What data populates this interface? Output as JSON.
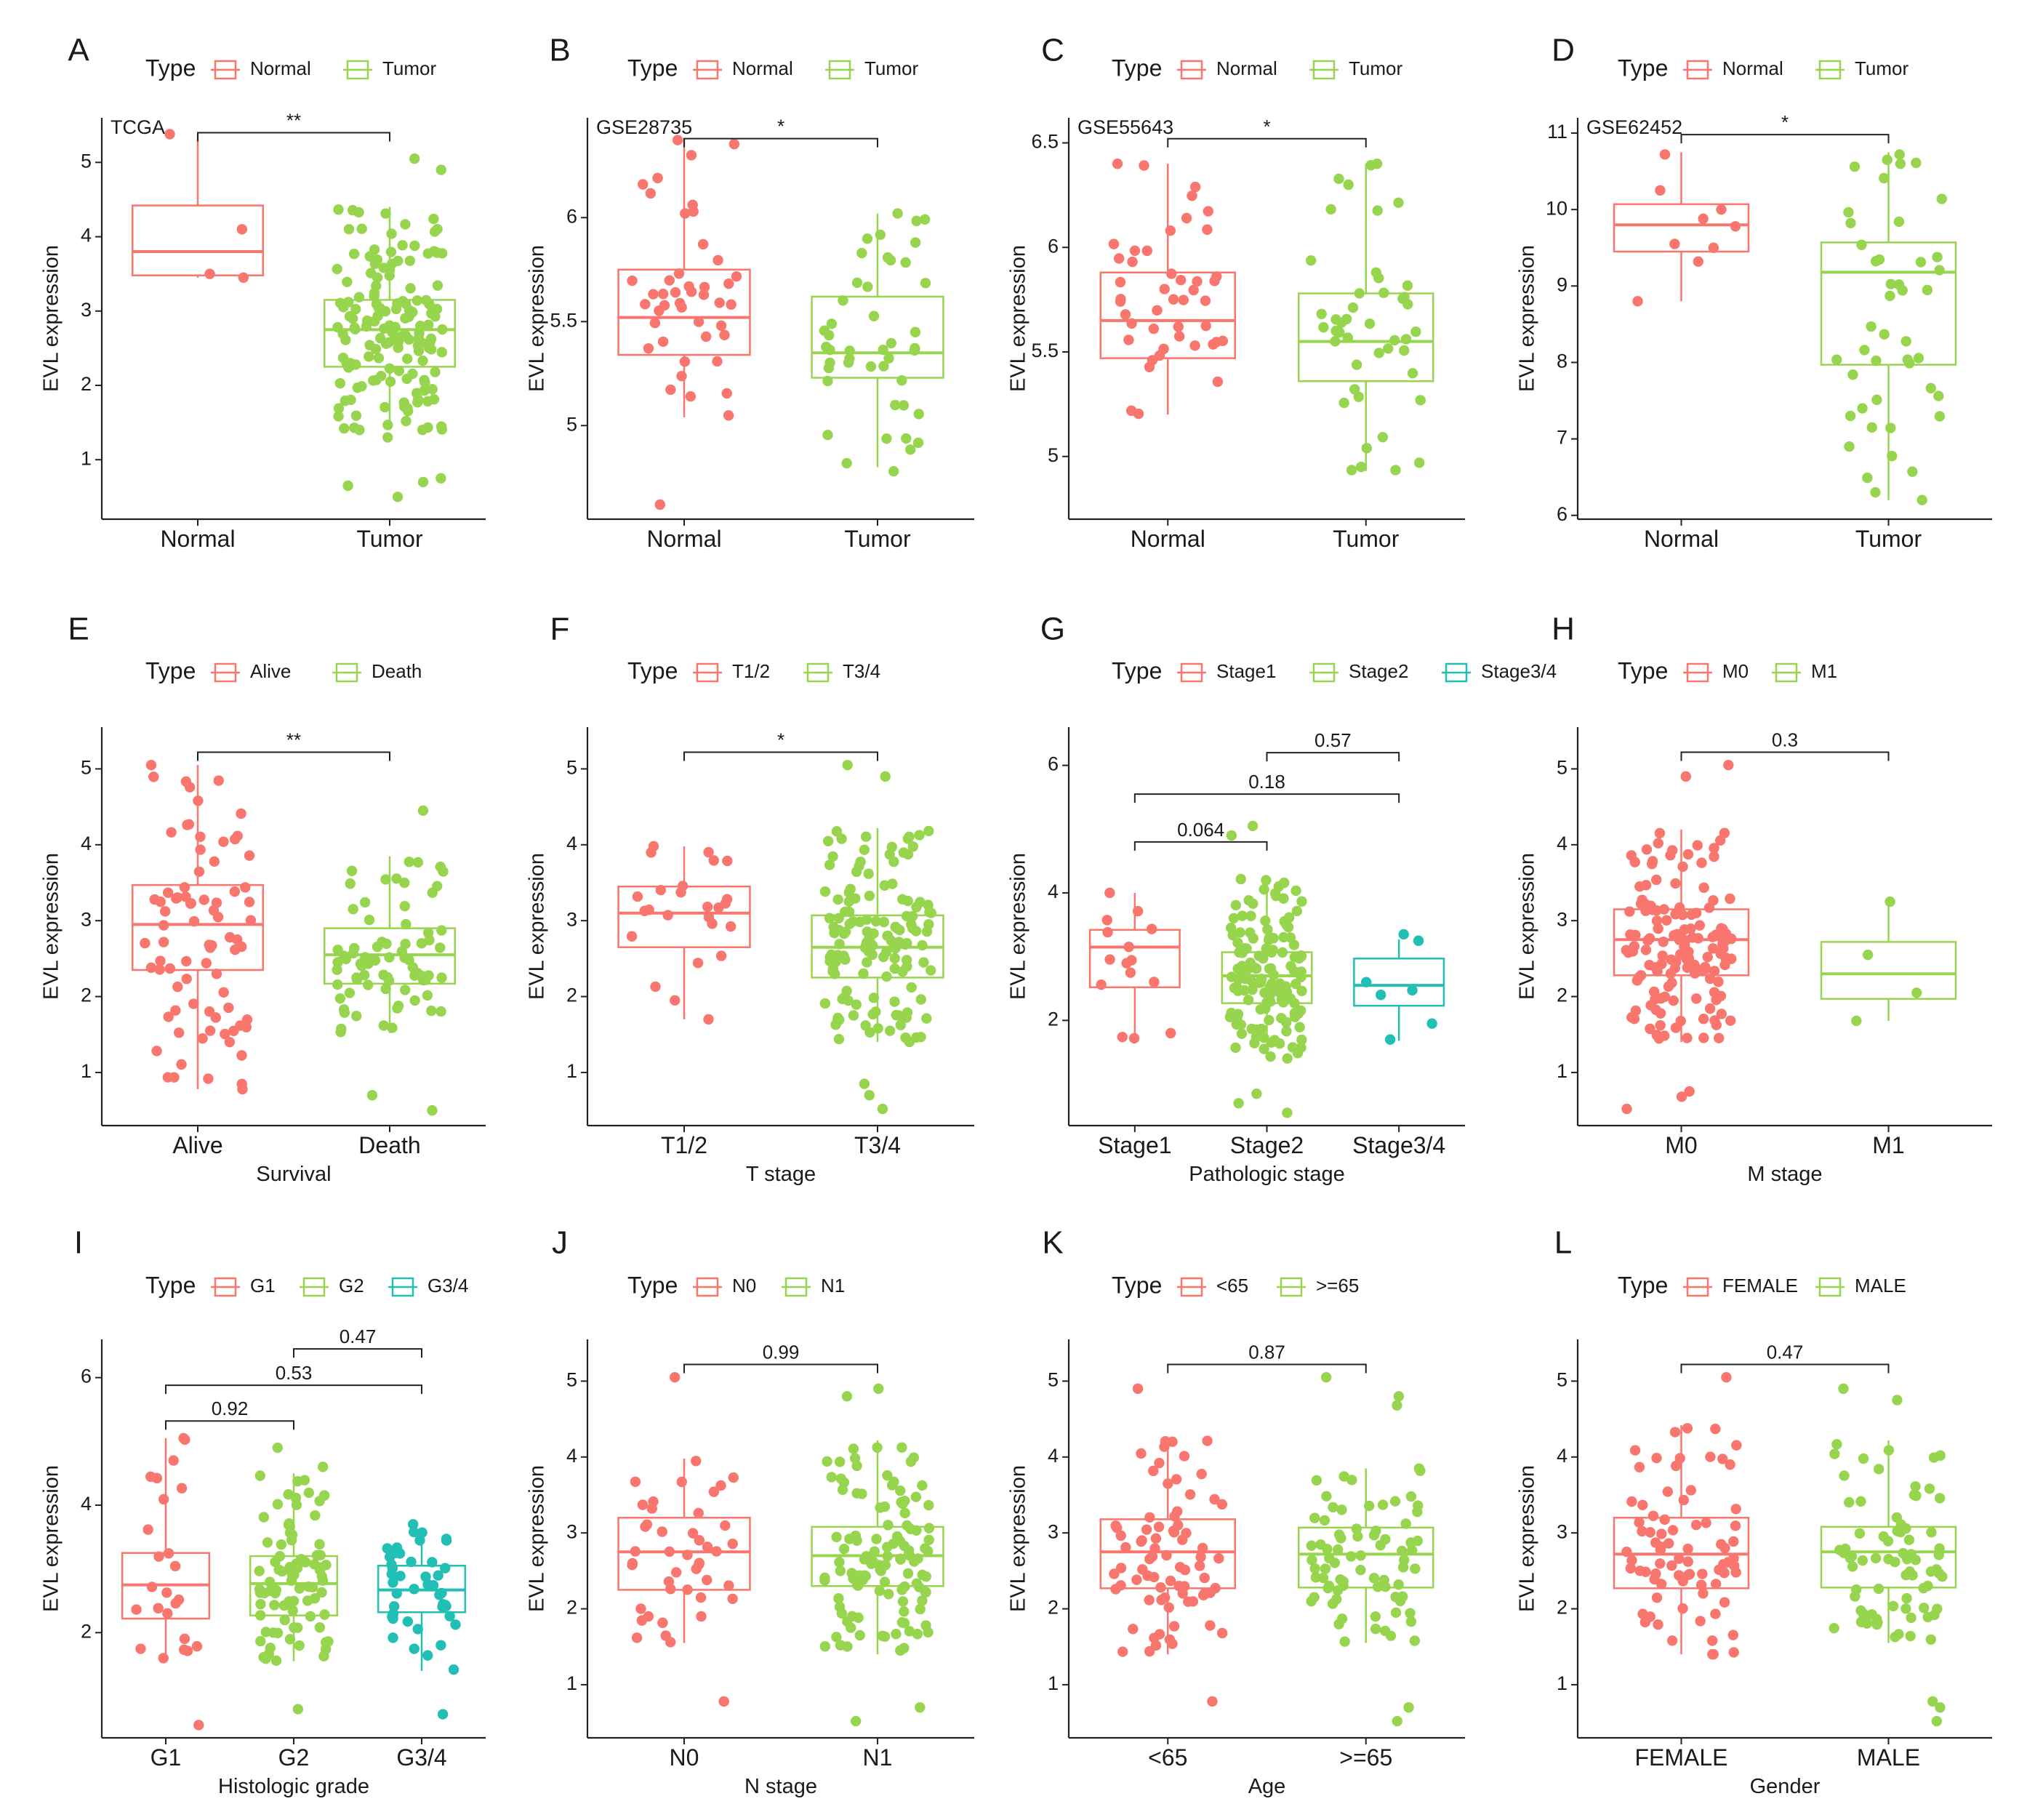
{
  "figure": {
    "ylabel": "EVL expression",
    "legend_title": "Type"
  },
  "colors": {
    "red": "#F8766D",
    "green": "#98D54E",
    "teal": "#22BFB4"
  },
  "chart_data": [
    {
      "panel": "A",
      "type": "box",
      "dataset": "TCGA",
      "legend_title": "Type",
      "categories": [
        "Normal",
        "Tumor"
      ],
      "colors": [
        "red",
        "green"
      ],
      "xlabel": "",
      "ylabel": "EVL expression",
      "ylim": [
        0.2,
        5.6
      ],
      "yticks": [
        1,
        2,
        3,
        4,
        5
      ],
      "boxes": [
        {
          "min": 3.45,
          "q1": 3.48,
          "median": 3.8,
          "q3": 4.42,
          "max": 5.38,
          "n": 4,
          "points": [
            5.38,
            4.1,
            3.5,
            3.45
          ]
        },
        {
          "min": 1.4,
          "q1": 2.25,
          "median": 2.75,
          "q3": 3.15,
          "max": 4.4,
          "n": 160,
          "points": [
            5.05,
            4.9,
            0.5,
            0.65,
            0.75,
            0.7,
            1.3,
            1.4
          ]
        }
      ],
      "comparisons": [
        {
          "from": 0,
          "to": 1,
          "label": "**",
          "y": 5.4
        }
      ]
    },
    {
      "panel": "B",
      "type": "box",
      "dataset": "GSE28735",
      "legend_title": "Type",
      "categories": [
        "Normal",
        "Tumor"
      ],
      "colors": [
        "red",
        "green"
      ],
      "xlabel": "",
      "ylabel": "EVL expression",
      "ylim": [
        4.55,
        6.48
      ],
      "yticks": [
        5.0,
        5.5,
        6.0
      ],
      "boxes": [
        {
          "min": 5.04,
          "q1": 5.34,
          "median": 5.52,
          "q3": 5.75,
          "max": 6.38,
          "n": 45,
          "points": [
            6.3,
            6.02,
            4.62
          ]
        },
        {
          "min": 4.8,
          "q1": 5.23,
          "median": 5.35,
          "q3": 5.62,
          "max": 6.02,
          "n": 45,
          "points": [
            4.78,
            6.02,
            5.88
          ]
        }
      ],
      "comparisons": [
        {
          "from": 0,
          "to": 1,
          "label": "*",
          "y": 6.38
        }
      ]
    },
    {
      "panel": "C",
      "type": "box",
      "dataset": "GSE55643",
      "legend_title": "Type",
      "categories": [
        "Normal",
        "Tumor"
      ],
      "colors": [
        "red",
        "green"
      ],
      "xlabel": "",
      "ylabel": "EVL expression",
      "ylim": [
        4.7,
        6.62
      ],
      "yticks": [
        5.0,
        5.5,
        6.0,
        6.5
      ],
      "boxes": [
        {
          "min": 5.2,
          "q1": 5.47,
          "median": 5.65,
          "q3": 5.88,
          "max": 6.4,
          "n": 45,
          "points": [
            6.4,
            6.14
          ]
        },
        {
          "min": 4.93,
          "q1": 5.36,
          "median": 5.55,
          "q3": 5.78,
          "max": 6.4,
          "n": 45,
          "points": [
            6.4,
            6.3,
            4.95,
            4.97
          ]
        }
      ],
      "comparisons": [
        {
          "from": 0,
          "to": 1,
          "label": "*",
          "y": 6.52
        }
      ]
    },
    {
      "panel": "D",
      "type": "box",
      "dataset": "GSE62452",
      "legend_title": "Type",
      "categories": [
        "Normal",
        "Tumor"
      ],
      "colors": [
        "red",
        "green"
      ],
      "xlabel": "",
      "ylabel": "EVL expression",
      "ylim": [
        5.95,
        11.2
      ],
      "yticks": [
        6,
        7,
        8,
        9,
        10,
        11
      ],
      "boxes": [
        {
          "min": 8.8,
          "q1": 9.45,
          "median": 9.8,
          "q3": 10.07,
          "max": 10.75,
          "n": 9,
          "points": [
            10.72,
            10.25,
            10.0,
            9.88,
            9.78,
            9.55,
            9.5,
            9.32,
            8.8
          ]
        },
        {
          "min": 6.2,
          "q1": 7.97,
          "median": 9.18,
          "q3": 9.57,
          "max": 10.75,
          "n": 45,
          "points": [
            10.72,
            10.65,
            6.2,
            7.15,
            7.4
          ]
        }
      ],
      "comparisons": [
        {
          "from": 0,
          "to": 1,
          "label": "*",
          "y": 10.98
        }
      ]
    },
    {
      "panel": "E",
      "type": "box",
      "dataset": "",
      "legend_title": "Type",
      "categories": [
        "Alive",
        "Death"
      ],
      "colors": [
        "red",
        "green"
      ],
      "xlabel": "Survival",
      "ylabel": "EVL expression",
      "ylim": [
        0.3,
        5.55
      ],
      "yticks": [
        1,
        2,
        3,
        4,
        5
      ],
      "boxes": [
        {
          "min": 0.78,
          "q1": 2.35,
          "median": 2.95,
          "q3": 3.47,
          "max": 5.05,
          "n": 80,
          "points": [
            5.05,
            0.78,
            1.4,
            1.55
          ]
        },
        {
          "min": 1.52,
          "q1": 2.17,
          "median": 2.55,
          "q3": 2.9,
          "max": 3.85,
          "n": 80,
          "points": [
            4.45,
            0.5,
            0.7
          ]
        }
      ],
      "comparisons": [
        {
          "from": 0,
          "to": 1,
          "label": "**",
          "y": 5.22
        }
      ]
    },
    {
      "panel": "F",
      "type": "box",
      "dataset": "",
      "legend_title": "Type",
      "categories": [
        "T1/2",
        "T3/4"
      ],
      "colors": [
        "red",
        "green"
      ],
      "xlabel": "T stage",
      "ylabel": "EVL expression",
      "ylim": [
        0.3,
        5.55
      ],
      "yticks": [
        1,
        2,
        3,
        4,
        5
      ],
      "boxes": [
        {
          "min": 1.7,
          "q1": 2.65,
          "median": 3.1,
          "q3": 3.45,
          "max": 3.98,
          "n": 25,
          "points": [
            3.98,
            1.7,
            1.95
          ]
        },
        {
          "min": 1.4,
          "q1": 2.25,
          "median": 2.65,
          "q3": 3.07,
          "max": 4.22,
          "n": 140,
          "points": [
            5.05,
            4.9,
            0.52,
            0.7,
            0.85
          ]
        }
      ],
      "comparisons": [
        {
          "from": 0,
          "to": 1,
          "label": "*",
          "y": 5.22
        }
      ]
    },
    {
      "panel": "G",
      "type": "box",
      "dataset": "",
      "legend_title": "Type",
      "categories": [
        "Stage1",
        "Stage2",
        "Stage3/4"
      ],
      "colors": [
        "red",
        "green",
        "teal"
      ],
      "xlabel": "Pathologic stage",
      "ylabel": "EVL expression",
      "ylim": [
        0.35,
        6.6
      ],
      "yticks": [
        2,
        4,
        6
      ],
      "boxes": [
        {
          "min": 1.7,
          "q1": 2.52,
          "median": 3.15,
          "q3": 3.42,
          "max": 4.0,
          "n": 15,
          "points": [
            4.0,
            1.72,
            1.8
          ]
        },
        {
          "min": 1.4,
          "q1": 2.27,
          "median": 2.7,
          "q3": 3.07,
          "max": 4.22,
          "n": 140,
          "points": [
            5.05,
            4.9,
            0.55,
            0.7,
            0.85
          ]
        },
        {
          "min": 1.68,
          "q1": 2.23,
          "median": 2.55,
          "q3": 2.97,
          "max": 3.27,
          "n": 7,
          "points": [
            3.35,
            3.25,
            2.4,
            1.7,
            1.95,
            2.6
          ]
        }
      ],
      "comparisons": [
        {
          "from": 0,
          "to": 1,
          "label": "0.064",
          "y": 4.8
        },
        {
          "from": 0,
          "to": 2,
          "label": "0.18",
          "y": 5.55
        },
        {
          "from": 1,
          "to": 2,
          "label": "0.57",
          "y": 6.2
        }
      ]
    },
    {
      "panel": "H",
      "type": "box",
      "dataset": "",
      "legend_title": "Type",
      "categories": [
        "M0",
        "M1"
      ],
      "colors": [
        "red",
        "green"
      ],
      "xlabel": "M stage",
      "ylabel": "EVL expression",
      "ylim": [
        0.3,
        5.55
      ],
      "yticks": [
        1,
        2,
        3,
        4,
        5
      ],
      "boxes": [
        {
          "min": 1.4,
          "q1": 2.28,
          "median": 2.75,
          "q3": 3.15,
          "max": 4.2,
          "n": 150,
          "points": [
            5.05,
            4.9,
            0.52,
            0.68,
            0.75
          ]
        },
        {
          "min": 1.68,
          "q1": 1.97,
          "median": 2.3,
          "q3": 2.72,
          "max": 3.25,
          "n": 4,
          "points": [
            3.25,
            2.55,
            2.05,
            1.68
          ]
        }
      ],
      "comparisons": [
        {
          "from": 0,
          "to": 1,
          "label": "0.3",
          "y": 5.22
        }
      ]
    },
    {
      "panel": "I",
      "type": "box",
      "dataset": "",
      "legend_title": "Type",
      "categories": [
        "G1",
        "G2",
        "G3/4"
      ],
      "colors": [
        "red",
        "green",
        "teal"
      ],
      "xlabel": "Histologic grade",
      "ylabel": "EVL expression",
      "ylim": [
        0.35,
        6.6
      ],
      "yticks": [
        2,
        4,
        6
      ],
      "boxes": [
        {
          "min": 1.6,
          "q1": 2.22,
          "median": 2.75,
          "q3": 3.25,
          "max": 5.05,
          "n": 25,
          "points": [
            5.05,
            4.7,
            0.55,
            1.6
          ]
        },
        {
          "min": 1.55,
          "q1": 2.27,
          "median": 2.77,
          "q3": 3.2,
          "max": 4.5,
          "n": 90,
          "points": [
            4.9,
            4.6,
            0.8
          ]
        },
        {
          "min": 1.4,
          "q1": 2.32,
          "median": 2.67,
          "q3": 3.05,
          "max": 3.6,
          "n": 45,
          "points": [
            3.7,
            1.42,
            0.72
          ]
        }
      ],
      "comparisons": [
        {
          "from": 0,
          "to": 1,
          "label": "0.92",
          "y": 5.32
        },
        {
          "from": 0,
          "to": 2,
          "label": "0.53",
          "y": 5.88
        },
        {
          "from": 1,
          "to": 2,
          "label": "0.47",
          "y": 6.45
        }
      ]
    },
    {
      "panel": "J",
      "type": "box",
      "dataset": "",
      "legend_title": "Type",
      "categories": [
        "N0",
        "N1"
      ],
      "colors": [
        "red",
        "green"
      ],
      "xlabel": "N stage",
      "ylabel": "EVL expression",
      "ylim": [
        0.3,
        5.55
      ],
      "yticks": [
        1,
        2,
        3,
        4,
        5
      ],
      "boxes": [
        {
          "min": 1.55,
          "q1": 2.25,
          "median": 2.75,
          "q3": 3.2,
          "max": 3.98,
          "n": 45,
          "points": [
            5.05,
            0.78
          ]
        },
        {
          "min": 1.4,
          "q1": 2.3,
          "median": 2.7,
          "q3": 3.08,
          "max": 4.22,
          "n": 120,
          "points": [
            4.9,
            4.8,
            0.52,
            0.7
          ]
        }
      ],
      "comparisons": [
        {
          "from": 0,
          "to": 1,
          "label": "0.99",
          "y": 5.22
        }
      ]
    },
    {
      "panel": "K",
      "type": "box",
      "dataset": "",
      "legend_title": "Type",
      "categories": [
        "<65",
        ">=65"
      ],
      "colors": [
        "red",
        "green"
      ],
      "xlabel": "Age",
      "ylabel": "EVL expression",
      "ylim": [
        0.3,
        5.55
      ],
      "yticks": [
        1,
        2,
        3,
        4,
        5
      ],
      "boxes": [
        {
          "min": 1.4,
          "q1": 2.27,
          "median": 2.75,
          "q3": 3.18,
          "max": 4.22,
          "n": 80,
          "points": [
            4.9,
            0.78
          ]
        },
        {
          "min": 1.55,
          "q1": 2.28,
          "median": 2.72,
          "q3": 3.07,
          "max": 3.85,
          "n": 80,
          "points": [
            5.05,
            4.8,
            4.68,
            0.52,
            0.7
          ]
        }
      ],
      "comparisons": [
        {
          "from": 0,
          "to": 1,
          "label": "0.87",
          "y": 5.22
        }
      ]
    },
    {
      "panel": "L",
      "type": "box",
      "dataset": "",
      "legend_title": "Type",
      "categories": [
        "FEMALE",
        "MALE"
      ],
      "colors": [
        "red",
        "green"
      ],
      "xlabel": "Gender",
      "ylabel": "EVL expression",
      "ylim": [
        0.3,
        5.55
      ],
      "yticks": [
        1,
        2,
        3,
        4,
        5
      ],
      "boxes": [
        {
          "min": 1.4,
          "q1": 2.27,
          "median": 2.72,
          "q3": 3.2,
          "max": 4.42,
          "n": 80,
          "points": [
            5.05,
            1.4
          ]
        },
        {
          "min": 1.55,
          "q1": 2.28,
          "median": 2.75,
          "q3": 3.08,
          "max": 4.22,
          "n": 80,
          "points": [
            4.9,
            4.75,
            0.52,
            0.7,
            0.78
          ]
        }
      ],
      "comparisons": [
        {
          "from": 0,
          "to": 1,
          "label": "0.47",
          "y": 5.22
        }
      ]
    }
  ]
}
